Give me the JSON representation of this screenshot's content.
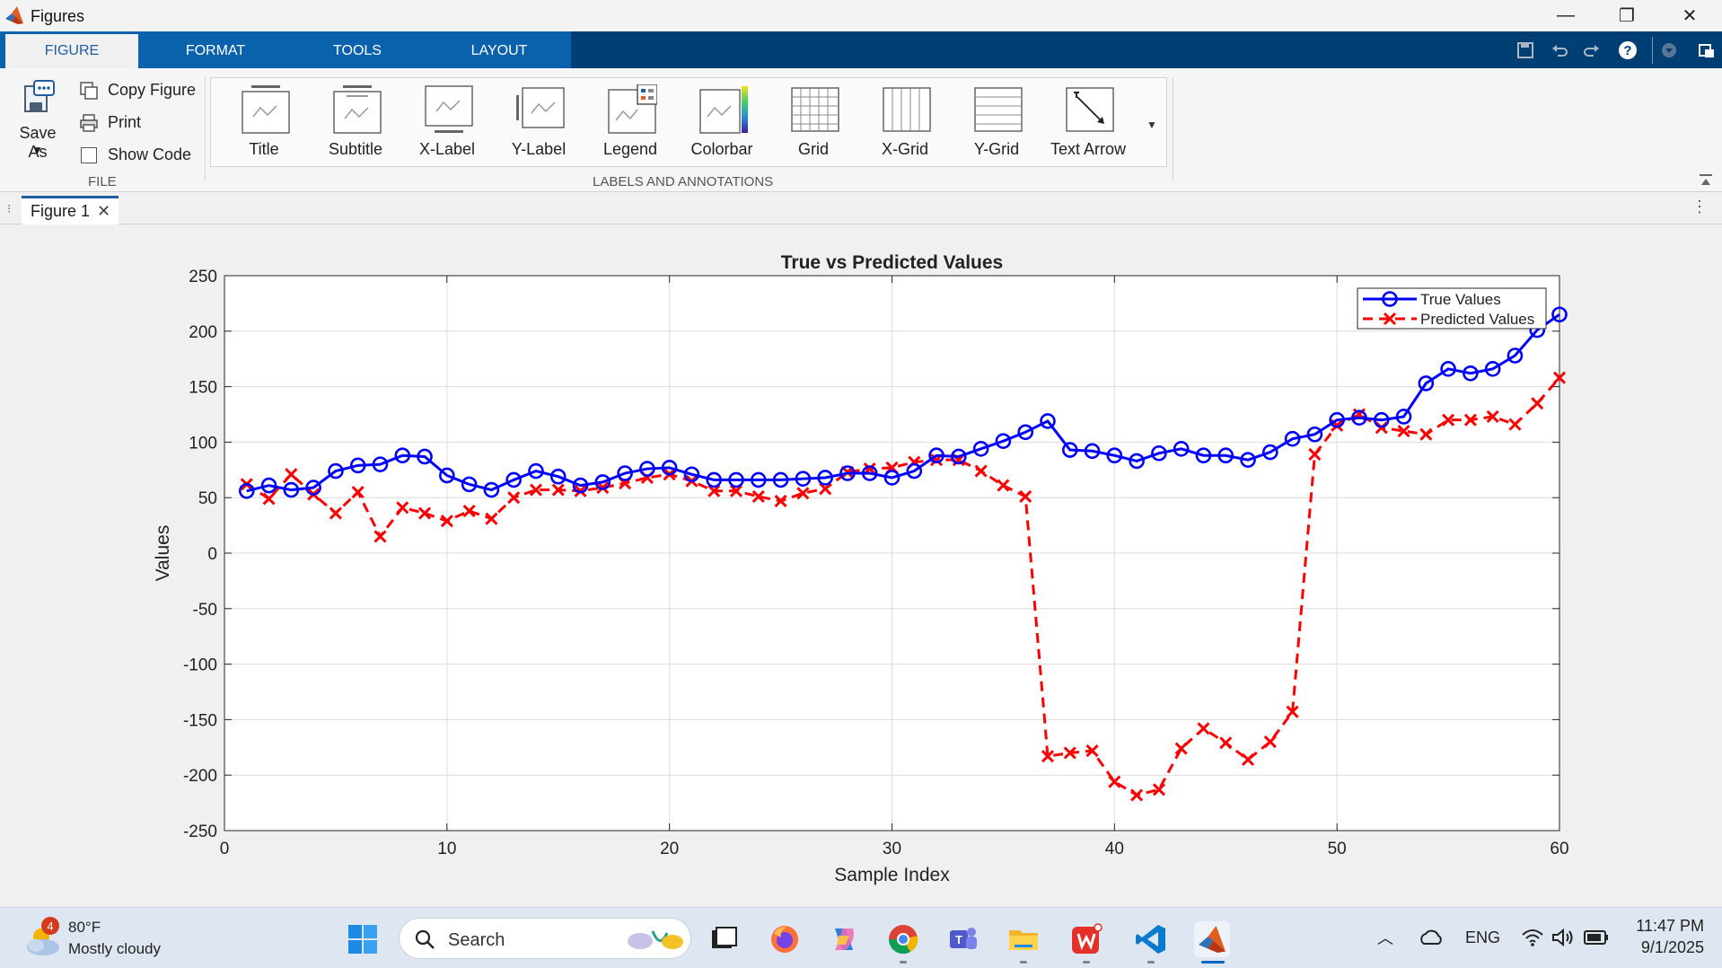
{
  "window": {
    "title": "Figures"
  },
  "window_controls": {
    "minimize": "—",
    "restore": "❐",
    "close": "✕"
  },
  "ribbon_tabs": [
    {
      "label": "FIGURE",
      "active": true
    },
    {
      "label": "FORMAT",
      "active": false
    },
    {
      "label": "TOOLS",
      "active": false
    },
    {
      "label": "LAYOUT",
      "active": false
    }
  ],
  "quick_access": {
    "save_icon": "save-icon",
    "undo_icon": "undo-icon",
    "redo_icon": "redo-icon",
    "help": "?"
  },
  "file_group": {
    "save_as": "Save As",
    "copy_figure": "Copy Figure",
    "print": "Print",
    "show_code": "Show Code",
    "label": "FILE"
  },
  "annotations_group": {
    "label": "LABELS AND ANNOTATIONS",
    "items": [
      "Title",
      "Subtitle",
      "X-Label",
      "Y-Label",
      "Legend",
      "Colorbar",
      "Grid",
      "X-Grid",
      "Y-Grid",
      "Text Arrow"
    ]
  },
  "figure_tab": {
    "label": "Figure 1",
    "close": "✕"
  },
  "chart_data": {
    "type": "line",
    "title": "True vs Predicted Values",
    "xlabel": "Sample Index",
    "ylabel": "Values",
    "xlim": [
      0,
      60
    ],
    "ylim": [
      -250,
      250
    ],
    "xticks": [
      0,
      10,
      20,
      30,
      40,
      50,
      60
    ],
    "yticks": [
      250,
      200,
      150,
      100,
      50,
      0,
      -50,
      -100,
      -150,
      -200,
      -250
    ],
    "grid": true,
    "legend_position": "top-right",
    "x": [
      1,
      2,
      3,
      4,
      5,
      6,
      7,
      8,
      9,
      10,
      11,
      12,
      13,
      14,
      15,
      16,
      17,
      18,
      19,
      20,
      21,
      22,
      23,
      24,
      25,
      26,
      27,
      28,
      29,
      30,
      31,
      32,
      33,
      34,
      35,
      36,
      37,
      38,
      39,
      40,
      41,
      42,
      43,
      44,
      45,
      46,
      47,
      48,
      49,
      50,
      51,
      52,
      53,
      54,
      55,
      56,
      57,
      58,
      59,
      60
    ],
    "series": [
      {
        "name": "True Values",
        "color": "#0000ff",
        "style": "solid-circle",
        "values": [
          56,
          61,
          57,
          59,
          74,
          79,
          80,
          88,
          87,
          70,
          62,
          57,
          66,
          74,
          69,
          61,
          64,
          72,
          76,
          77,
          71,
          66,
          66,
          66,
          66,
          67,
          68,
          72,
          72,
          68,
          74,
          88,
          87,
          94,
          101,
          109,
          119,
          93,
          92,
          88,
          83,
          90,
          94,
          88,
          88,
          84,
          91,
          103,
          107,
          120,
          122,
          120,
          123,
          153,
          166,
          162,
          166,
          178,
          201,
          215
        ]
      },
      {
        "name": "Predicted Values",
        "color": "#ff0000",
        "style": "dashed-x",
        "values": [
          62,
          49,
          71,
          53,
          36,
          55,
          15,
          41,
          36,
          29,
          38,
          31,
          50,
          57,
          57,
          56,
          59,
          63,
          68,
          71,
          65,
          56,
          56,
          51,
          47,
          54,
          58,
          73,
          76,
          77,
          82,
          84,
          84,
          74,
          61,
          51,
          -183,
          -180,
          -178,
          -206,
          -218,
          -213,
          -176,
          -158,
          -171,
          -186,
          -170,
          -143,
          89,
          115,
          125,
          113,
          110,
          107,
          120,
          120,
          123,
          116,
          135,
          158
        ]
      }
    ]
  },
  "taskbar": {
    "weather_temp": "80°F",
    "weather_desc": "Mostly cloudy",
    "weather_badge": "4",
    "search_placeholder": "Search",
    "lang": "ENG",
    "time": "11:47 PM",
    "date": "9/1/2025"
  }
}
